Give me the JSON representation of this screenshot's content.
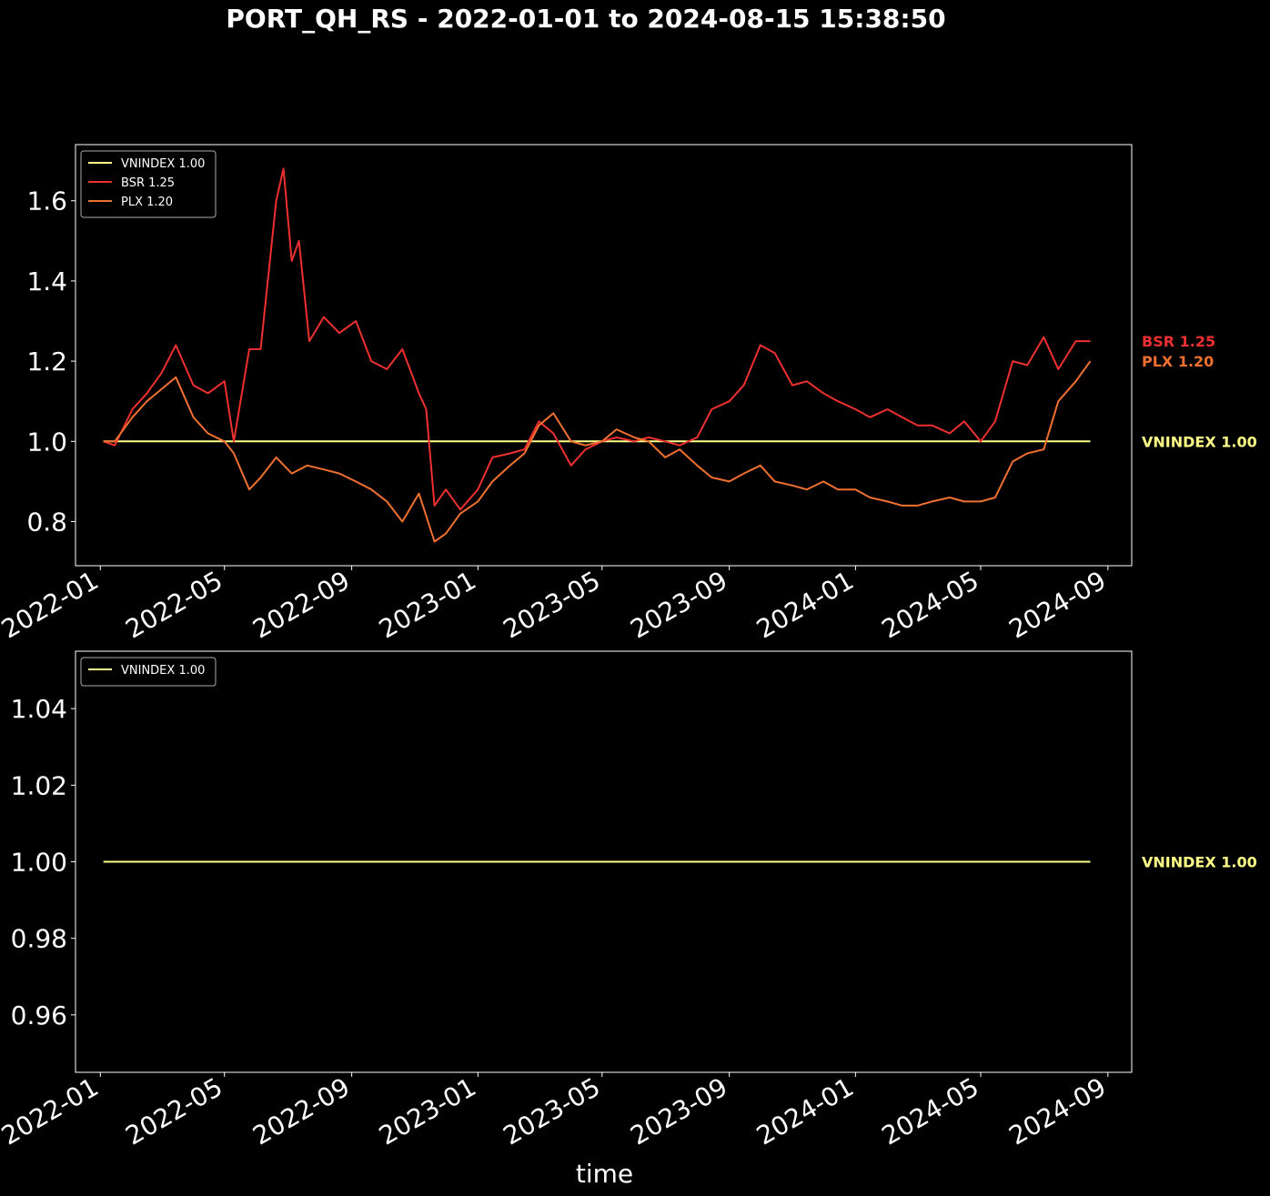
{
  "title": "PORT_QH_RS - 2022-01-01 to 2024-08-15 15:38:50",
  "colors": {
    "VNINDEX": "#ffff88",
    "BSR": "#ee3030",
    "PLX": "#f07030",
    "background": "#000000",
    "axes": "#ffffff"
  },
  "chart_data": [
    {
      "type": "line",
      "title": "",
      "xlabel": "",
      "ylabel": "",
      "xlim": [
        "2021-12-08",
        "2024-09-24"
      ],
      "ylim": [
        0.69,
        1.74
      ],
      "grid": false,
      "legend_placement": "top-left",
      "x_ticks": [
        "2022-01",
        "2022-05",
        "2022-09",
        "2023-01",
        "2023-05",
        "2023-09",
        "2024-01",
        "2024-05",
        "2024-09"
      ],
      "y_ticks": [
        "0.8",
        "1.0",
        "1.2",
        "1.4",
        "1.6"
      ],
      "series": [
        {
          "name": "VNINDEX 1.00",
          "label": "VNINDEX 1.00",
          "color": "#ffff88",
          "x": [
            "2022-01-04",
            "2024-08-15"
          ],
          "y": [
            1.0,
            1.0
          ]
        },
        {
          "name": "BSR 1.25",
          "label": "BSR 1.25",
          "color": "#ee3030",
          "x": [
            "2022-01-04",
            "2022-01-15",
            "2022-02-01",
            "2022-02-15",
            "2022-03-01",
            "2022-03-15",
            "2022-04-01",
            "2022-04-15",
            "2022-05-01",
            "2022-05-10",
            "2022-05-25",
            "2022-06-05",
            "2022-06-20",
            "2022-06-27",
            "2022-07-05",
            "2022-07-12",
            "2022-07-22",
            "2022-08-05",
            "2022-08-20",
            "2022-09-05",
            "2022-09-20",
            "2022-10-05",
            "2022-10-20",
            "2022-11-05",
            "2022-11-12",
            "2022-11-20",
            "2022-12-01",
            "2022-12-15",
            "2023-01-01",
            "2023-01-15",
            "2023-02-01",
            "2023-02-15",
            "2023-03-01",
            "2023-03-15",
            "2023-04-01",
            "2023-04-15",
            "2023-05-01",
            "2023-05-15",
            "2023-06-01",
            "2023-06-15",
            "2023-07-01",
            "2023-07-15",
            "2023-08-01",
            "2023-08-15",
            "2023-09-01",
            "2023-09-15",
            "2023-10-01",
            "2023-10-15",
            "2023-11-01",
            "2023-11-15",
            "2023-12-01",
            "2023-12-15",
            "2024-01-01",
            "2024-01-15",
            "2024-02-01",
            "2024-02-15",
            "2024-03-01",
            "2024-03-15",
            "2024-04-01",
            "2024-04-15",
            "2024-05-01",
            "2024-05-15",
            "2024-06-01",
            "2024-06-15",
            "2024-07-01",
            "2024-07-15",
            "2024-08-01",
            "2024-08-15"
          ],
          "y": [
            1.0,
            0.99,
            1.08,
            1.12,
            1.17,
            1.24,
            1.14,
            1.12,
            1.15,
            1.0,
            1.23,
            1.23,
            1.6,
            1.68,
            1.45,
            1.5,
            1.25,
            1.31,
            1.27,
            1.3,
            1.2,
            1.18,
            1.23,
            1.12,
            1.08,
            0.84,
            0.88,
            0.83,
            0.88,
            0.96,
            0.97,
            0.98,
            1.05,
            1.02,
            0.94,
            0.98,
            1.0,
            1.01,
            1.0,
            1.01,
            1.0,
            0.99,
            1.01,
            1.08,
            1.1,
            1.14,
            1.24,
            1.22,
            1.14,
            1.15,
            1.12,
            1.1,
            1.08,
            1.06,
            1.08,
            1.06,
            1.04,
            1.04,
            1.02,
            1.05,
            1.0,
            1.05,
            1.2,
            1.19,
            1.26,
            1.18,
            1.25,
            1.25
          ]
        },
        {
          "name": "PLX 1.20",
          "label": "PLX 1.20",
          "color": "#f07030",
          "x": [
            "2022-01-04",
            "2022-01-15",
            "2022-02-01",
            "2022-02-15",
            "2022-03-01",
            "2022-03-15",
            "2022-04-01",
            "2022-04-15",
            "2022-05-01",
            "2022-05-10",
            "2022-05-25",
            "2022-06-05",
            "2022-06-20",
            "2022-07-05",
            "2022-07-20",
            "2022-08-05",
            "2022-08-20",
            "2022-09-05",
            "2022-09-20",
            "2022-10-05",
            "2022-10-20",
            "2022-11-05",
            "2022-11-20",
            "2022-12-01",
            "2022-12-15",
            "2023-01-01",
            "2023-01-15",
            "2023-02-01",
            "2023-02-15",
            "2023-03-01",
            "2023-03-15",
            "2023-04-01",
            "2023-04-15",
            "2023-05-01",
            "2023-05-15",
            "2023-06-01",
            "2023-06-15",
            "2023-07-01",
            "2023-07-15",
            "2023-08-01",
            "2023-08-15",
            "2023-09-01",
            "2023-09-15",
            "2023-10-01",
            "2023-10-15",
            "2023-11-01",
            "2023-11-15",
            "2023-12-01",
            "2023-12-15",
            "2024-01-01",
            "2024-01-15",
            "2024-02-01",
            "2024-02-15",
            "2024-03-01",
            "2024-03-15",
            "2024-04-01",
            "2024-04-15",
            "2024-05-01",
            "2024-05-15",
            "2024-06-01",
            "2024-06-15",
            "2024-07-01",
            "2024-07-15",
            "2024-08-01",
            "2024-08-15"
          ],
          "y": [
            1.0,
            1.0,
            1.06,
            1.1,
            1.13,
            1.16,
            1.06,
            1.02,
            1.0,
            0.97,
            0.88,
            0.91,
            0.96,
            0.92,
            0.94,
            0.93,
            0.92,
            0.9,
            0.88,
            0.85,
            0.8,
            0.87,
            0.75,
            0.77,
            0.82,
            0.85,
            0.9,
            0.94,
            0.97,
            1.04,
            1.07,
            1.0,
            0.99,
            1.0,
            1.03,
            1.01,
            1.0,
            0.96,
            0.98,
            0.94,
            0.91,
            0.9,
            0.92,
            0.94,
            0.9,
            0.89,
            0.88,
            0.9,
            0.88,
            0.88,
            0.86,
            0.85,
            0.84,
            0.84,
            0.85,
            0.86,
            0.85,
            0.85,
            0.86,
            0.95,
            0.97,
            0.98,
            1.1,
            1.15,
            1.2
          ]
        }
      ]
    },
    {
      "type": "line",
      "title": "",
      "xlabel": "time",
      "ylabel": "",
      "xlim": [
        "2021-12-08",
        "2024-09-24"
      ],
      "ylim": [
        0.945,
        1.055
      ],
      "grid": false,
      "legend_placement": "top-left",
      "x_ticks": [
        "2022-01",
        "2022-05",
        "2022-09",
        "2023-01",
        "2023-05",
        "2023-09",
        "2024-01",
        "2024-05",
        "2024-09"
      ],
      "y_ticks": [
        "0.96",
        "0.98",
        "1.00",
        "1.02",
        "1.04"
      ],
      "series": [
        {
          "name": "VNINDEX 1.00",
          "label": "VNINDEX 1.00",
          "color": "#ffff88",
          "x": [
            "2022-01-04",
            "2024-08-15"
          ],
          "y": [
            1.0,
            1.0
          ]
        }
      ]
    }
  ]
}
